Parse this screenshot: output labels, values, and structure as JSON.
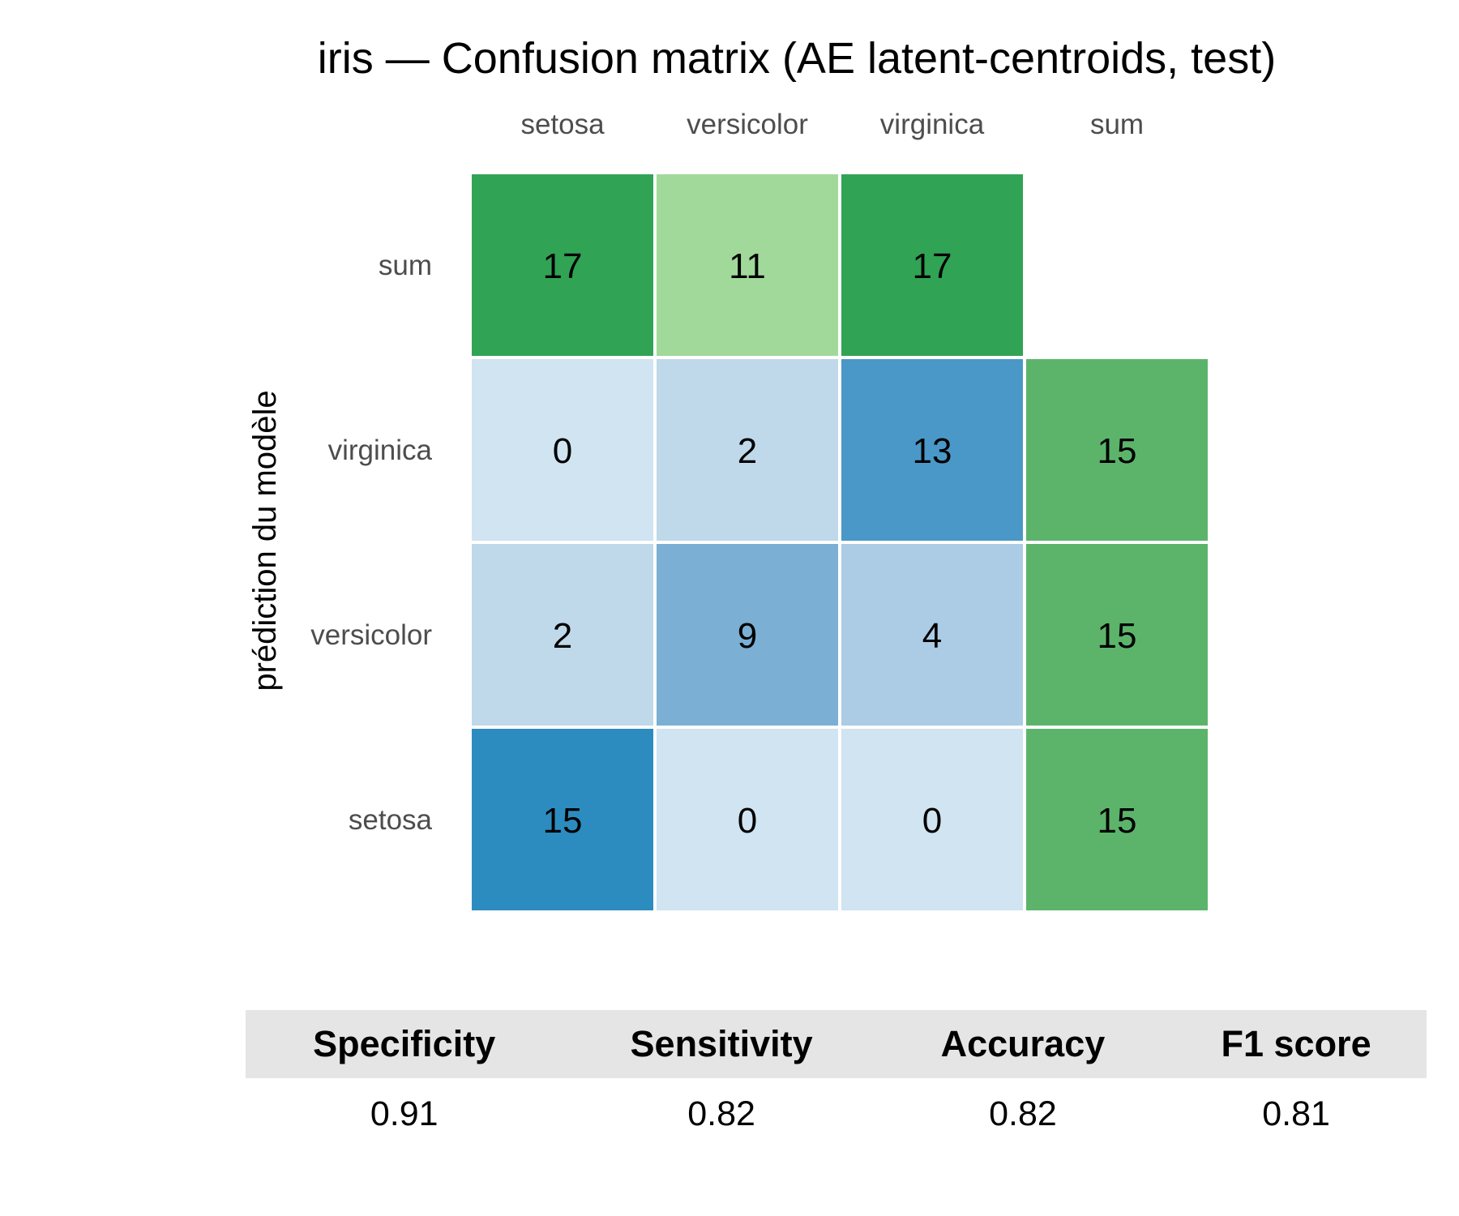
{
  "chart_data": {
    "type": "heatmap",
    "title": "iris — Confusion matrix (AE latent-centroids, test)",
    "ylabel": "prédiction du modèle",
    "xlabel": "",
    "x_categories": [
      "setosa",
      "versicolor",
      "virginica",
      "sum"
    ],
    "y_categories_top_to_bottom": [
      "sum",
      "virginica",
      "versicolor",
      "setosa"
    ],
    "cells": [
      {
        "row": "sum",
        "col": "setosa",
        "value": 17,
        "color": "#31a354"
      },
      {
        "row": "sum",
        "col": "versicolor",
        "value": 11,
        "color": "#a1d99b"
      },
      {
        "row": "sum",
        "col": "virginica",
        "value": 17,
        "color": "#31a354"
      },
      {
        "row": "virginica",
        "col": "setosa",
        "value": 0,
        "color": "#d0e4f1"
      },
      {
        "row": "virginica",
        "col": "versicolor",
        "value": 2,
        "color": "#bfd8ea"
      },
      {
        "row": "virginica",
        "col": "virginica",
        "value": 13,
        "color": "#4a98c8"
      },
      {
        "row": "virginica",
        "col": "sum",
        "value": 15,
        "color": "#5cb46b"
      },
      {
        "row": "versicolor",
        "col": "setosa",
        "value": 2,
        "color": "#bfd8ea"
      },
      {
        "row": "versicolor",
        "col": "versicolor",
        "value": 9,
        "color": "#7bafd4"
      },
      {
        "row": "versicolor",
        "col": "virginica",
        "value": 4,
        "color": "#abcce4"
      },
      {
        "row": "versicolor",
        "col": "sum",
        "value": 15,
        "color": "#5cb46b"
      },
      {
        "row": "setosa",
        "col": "setosa",
        "value": 15,
        "color": "#2c8cbf"
      },
      {
        "row": "setosa",
        "col": "versicolor",
        "value": 0,
        "color": "#d0e4f1"
      },
      {
        "row": "setosa",
        "col": "virginica",
        "value": 0,
        "color": "#d0e4f1"
      },
      {
        "row": "setosa",
        "col": "sum",
        "value": 15,
        "color": "#5cb46b"
      }
    ]
  },
  "metrics": {
    "headers": [
      "Specificity",
      "Sensitivity",
      "Accuracy",
      "F1 score"
    ],
    "values": [
      "0.91",
      "0.82",
      "0.82",
      "0.81"
    ]
  }
}
